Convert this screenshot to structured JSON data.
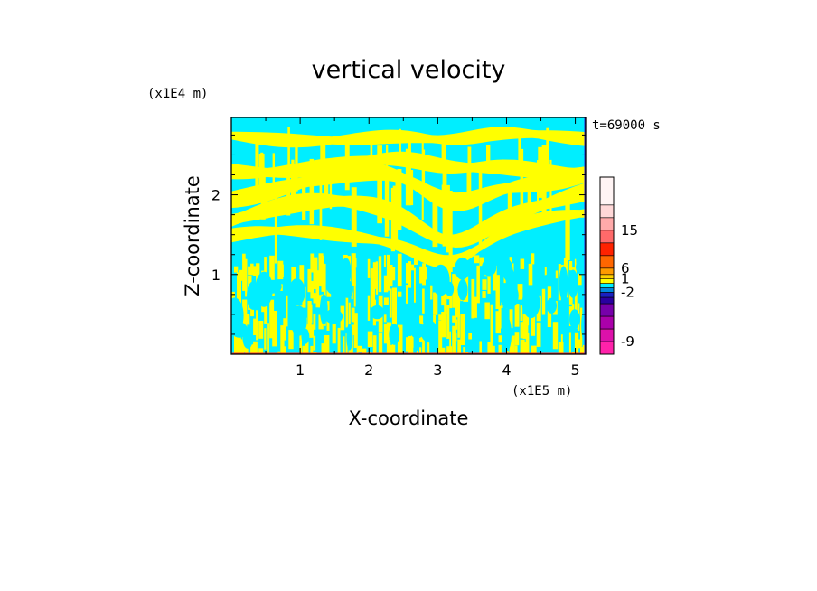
{
  "chart_data": {
    "type": "heatmap",
    "title": "vertical velocity",
    "xlabel": "X-coordinate",
    "ylabel": "Z-coordinate",
    "x_unit_label": "(x1E5 m)",
    "y_unit_label": "(x1E4 m)",
    "time_label": "t=69000 s",
    "xlim": [
      0,
      5.15
    ],
    "ylim": [
      0,
      2.97
    ],
    "x_ticks": [
      {
        "value": 1,
        "label": "1"
      },
      {
        "value": 2,
        "label": "2"
      },
      {
        "value": 3,
        "label": "3"
      },
      {
        "value": 4,
        "label": "4"
      },
      {
        "value": 5,
        "label": "5"
      }
    ],
    "y_ticks": [
      {
        "value": 1,
        "label": "1"
      },
      {
        "value": 2,
        "label": "2"
      }
    ],
    "field_colors": {
      "positive": "#ffff00",
      "negative": "#00eeff",
      "edge_red": "#ff3030",
      "edge_blue": "#3020d0"
    },
    "colorbar": {
      "levels": [
        {
          "color": "#ff22aa"
        },
        {
          "color": "#dd11aa"
        },
        {
          "color": "#aa00aa"
        },
        {
          "color": "#7700aa"
        },
        {
          "color": "#2a00a0"
        },
        {
          "color": "#1a20c0"
        },
        {
          "color": "#0088dd"
        },
        {
          "color": "#00eeff"
        },
        {
          "color": "#ffff00"
        },
        {
          "color": "#ffd000"
        },
        {
          "color": "#ff9a00"
        },
        {
          "color": "#ff6600"
        },
        {
          "color": "#ff2200"
        },
        {
          "color": "#ff6a6a"
        },
        {
          "color": "#ffaaaa"
        },
        {
          "color": "#ffd8d8"
        },
        {
          "color": "#fff4f4"
        }
      ],
      "labels": [
        {
          "value": -9,
          "label": "-9"
        },
        {
          "value": -2,
          "label": "-2"
        },
        {
          "value": 1,
          "label": "1"
        },
        {
          "value": 6,
          "label": "6"
        },
        {
          "value": 15,
          "label": "15"
        }
      ]
    }
  }
}
